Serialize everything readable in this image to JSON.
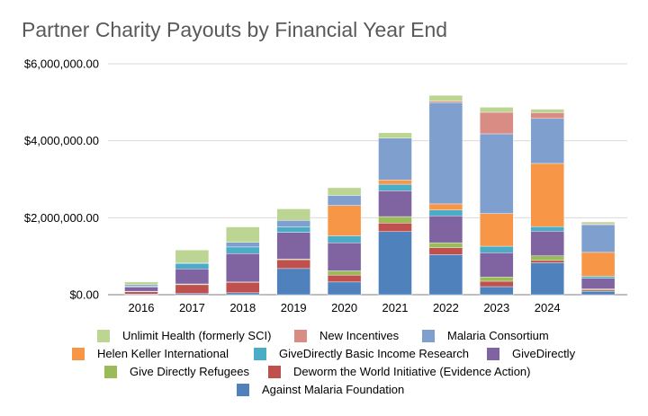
{
  "chart_data": {
    "type": "bar",
    "stacked": true,
    "title": "Partner Charity Payouts by Financial Year End",
    "xlabel": "",
    "ylabel": "",
    "ylim": [
      0,
      6000000
    ],
    "yticks": [
      "$0.00",
      "$2,000,000.00",
      "$4,000,000.00",
      "$6,000,000.00"
    ],
    "ytick_values": [
      0,
      2000000,
      4000000,
      6000000
    ],
    "grid": true,
    "legend_position": "bottom",
    "categories": [
      "2016",
      "2017",
      "2018",
      "2019",
      "2020",
      "2021",
      "2022",
      "2023",
      "2024",
      ""
    ],
    "series": [
      {
        "name": "Against Malaria Foundation",
        "color": "#4f81bd",
        "values": [
          20000,
          30000,
          50000,
          680000,
          330000,
          1640000,
          1040000,
          210000,
          830000,
          90000
        ]
      },
      {
        "name": "Deworm the World Initiative (Evidence Action)",
        "color": "#c0504d",
        "values": [
          60000,
          230000,
          270000,
          230000,
          180000,
          220000,
          180000,
          140000,
          60000,
          30000
        ]
      },
      {
        "name": "Give Directly Refugees",
        "color": "#9bbb59",
        "values": [
          10000,
          20000,
          10000,
          20000,
          110000,
          170000,
          130000,
          110000,
          120000,
          30000
        ]
      },
      {
        "name": "GiveDirectly",
        "color": "#8064a2",
        "values": [
          110000,
          390000,
          740000,
          690000,
          730000,
          670000,
          700000,
          630000,
          640000,
          280000
        ]
      },
      {
        "name": "GiveDirectly Basic Income Research",
        "color": "#4bacc6",
        "values": [
          20000,
          140000,
          170000,
          140000,
          180000,
          170000,
          150000,
          170000,
          120000,
          50000
        ]
      },
      {
        "name": "Helen Keller International",
        "color": "#f79646",
        "values": [
          0,
          0,
          0,
          0,
          790000,
          110000,
          160000,
          850000,
          1640000,
          620000
        ]
      },
      {
        "name": "Malaria Consortium",
        "color": "#7f9fcf",
        "values": [
          40000,
          20000,
          120000,
          170000,
          260000,
          1090000,
          2630000,
          2070000,
          1170000,
          720000
        ]
      },
      {
        "name": "New Incentives",
        "color": "#d88c84",
        "values": [
          0,
          0,
          0,
          0,
          0,
          0,
          40000,
          560000,
          150000,
          20000
        ]
      },
      {
        "name": "Unlimit Health (formerly SCI)",
        "color": "#bcd592",
        "values": [
          70000,
          330000,
          400000,
          300000,
          200000,
          140000,
          150000,
          130000,
          90000,
          50000
        ]
      }
    ]
  },
  "legend": {
    "rows": [
      [
        "Unlimit Health (formerly SCI)",
        "New Incentives",
        "Malaria Consortium"
      ],
      [
        "Helen Keller International",
        "GiveDirectly Basic Income Research",
        "GiveDirectly"
      ],
      [
        "Give Directly Refugees",
        "Deworm the World Initiative (Evidence Action)"
      ],
      [
        "Against Malaria Foundation"
      ]
    ]
  }
}
